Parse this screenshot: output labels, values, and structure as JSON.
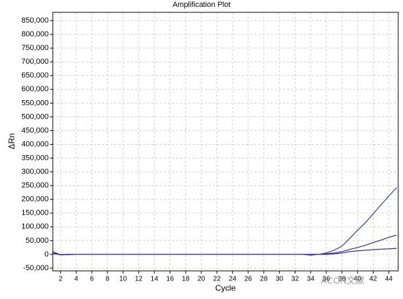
{
  "chart_data": {
    "type": "line",
    "title": "Amplification Plot",
    "x_label": "Cycle",
    "y_label": "ΔRn",
    "watermark": "ACON文献",
    "x": [
      1,
      2,
      3,
      4,
      5,
      6,
      7,
      8,
      9,
      10,
      11,
      12,
      13,
      14,
      15,
      16,
      17,
      18,
      19,
      20,
      21,
      22,
      23,
      24,
      25,
      26,
      27,
      28,
      29,
      30,
      31,
      32,
      33,
      34,
      35,
      36,
      37,
      38,
      39,
      40,
      41,
      42,
      43,
      44,
      45
    ],
    "xlim": [
      1,
      45.2
    ],
    "xticks": [
      2,
      4,
      6,
      8,
      10,
      12,
      14,
      16,
      18,
      20,
      22,
      24,
      26,
      28,
      30,
      32,
      34,
      36,
      38,
      40,
      42,
      44
    ],
    "ylim": [
      -60000,
      880000
    ],
    "yticks": [
      {
        "value": -50000,
        "label": "-50,000"
      },
      0,
      {
        "value": 50000,
        "label": "50,000"
      },
      {
        "value": 100000,
        "label": "100,000"
      },
      {
        "value": 150000,
        "label": "150,000"
      },
      {
        "value": 200000,
        "label": "200,000"
      },
      {
        "value": 250000,
        "label": "250,000"
      },
      {
        "value": 300000,
        "label": "300,000"
      },
      {
        "value": 350000,
        "label": "350,000"
      },
      {
        "value": 400000,
        "label": "400,000"
      },
      {
        "value": 450000,
        "label": "450,000"
      },
      {
        "value": 500000,
        "label": "500,000"
      },
      {
        "value": 550000,
        "label": "550,000"
      },
      {
        "value": 600000,
        "label": "600,000"
      },
      {
        "value": 650000,
        "label": "650,000"
      },
      {
        "value": 700000,
        "label": "700,000"
      },
      {
        "value": 750000,
        "label": "750,000"
      },
      {
        "value": 800000,
        "label": "800,000"
      },
      {
        "value": 850000,
        "label": "850,000"
      }
    ],
    "grid": true,
    "series": [
      {
        "color": "#3a3a9c",
        "values": [
          10000,
          -2000,
          -1000,
          0,
          0,
          0,
          0,
          0,
          0,
          0,
          0,
          0,
          0,
          0,
          0,
          0,
          0,
          0,
          0,
          0,
          0,
          0,
          0,
          0,
          0,
          0,
          0,
          0,
          0,
          0,
          0,
          0,
          0,
          -3000,
          0,
          5000,
          15000,
          30000,
          58000,
          88000,
          115000,
          148000,
          180000,
          212000,
          243000
        ]
      },
      {
        "color": "#2f2f8c",
        "values": [
          5000,
          -1000,
          0,
          0,
          0,
          0,
          0,
          0,
          0,
          0,
          0,
          0,
          0,
          0,
          0,
          0,
          0,
          0,
          0,
          0,
          0,
          0,
          0,
          0,
          0,
          0,
          0,
          0,
          0,
          0,
          0,
          0,
          0,
          0,
          0,
          2000,
          5000,
          10000,
          18000,
          25000,
          33000,
          43000,
          52000,
          62000,
          70000
        ]
      },
      {
        "color": "#2a2a80",
        "values": [
          3000,
          -1000,
          0,
          0,
          0,
          0,
          0,
          0,
          0,
          0,
          0,
          0,
          0,
          0,
          0,
          0,
          0,
          0,
          0,
          0,
          0,
          0,
          0,
          0,
          0,
          0,
          0,
          0,
          0,
          0,
          0,
          0,
          0,
          0,
          0,
          0,
          2000,
          5000,
          10000,
          13000,
          15000,
          17000,
          19000,
          20000,
          22000
        ]
      }
    ]
  }
}
